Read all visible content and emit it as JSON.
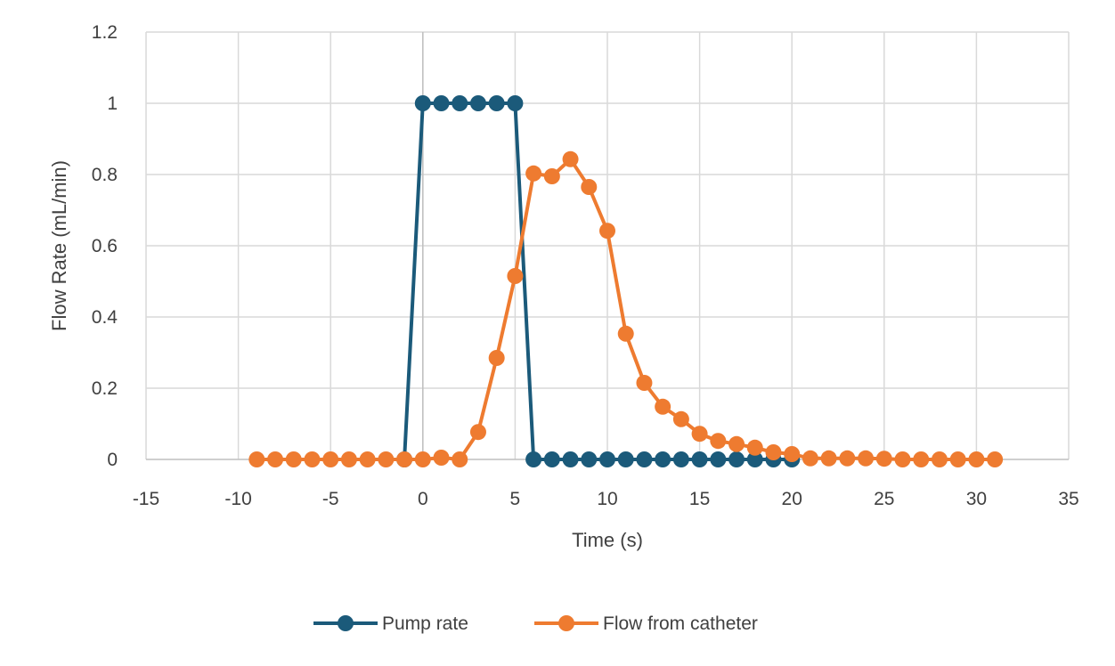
{
  "chart_data": {
    "type": "line",
    "title": "",
    "xlabel": "Time (s)",
    "ylabel": "Flow Rate (mL/min)",
    "xlim": [
      -15,
      35
    ],
    "ylim": [
      0,
      1.2
    ],
    "x_ticks": [
      -15,
      -10,
      -5,
      0,
      5,
      10,
      15,
      20,
      25,
      30,
      35
    ],
    "y_ticks": [
      0,
      0.2,
      0.4,
      0.6,
      0.8,
      1,
      1.2
    ],
    "x_tick_labels": [
      "-15",
      "-10",
      "-5",
      "0",
      "5",
      "10",
      "15",
      "20",
      "25",
      "30",
      "35"
    ],
    "y_tick_labels": [
      "0",
      "0.2",
      "0.4",
      "0.6",
      "0.8",
      "1",
      "1.2"
    ],
    "grid": true,
    "legend_position": "bottom",
    "series": [
      {
        "name": "Pump rate",
        "color": "#1b5a7a",
        "x": [
          -1,
          0,
          1,
          2,
          3,
          4,
          5,
          6,
          7,
          8,
          9,
          10,
          11,
          12,
          13,
          14,
          15,
          16,
          17,
          18,
          19,
          20
        ],
        "y": [
          0,
          1,
          1,
          1,
          1,
          1,
          1,
          0,
          0,
          0,
          0,
          0,
          0,
          0,
          0,
          0,
          0,
          0,
          0,
          0,
          0,
          0
        ]
      },
      {
        "name": "Flow from catheter",
        "color": "#ee7b30",
        "x": [
          -9,
          -8,
          -7,
          -6,
          -5,
          -4,
          -3,
          -2,
          -1,
          0,
          1,
          2,
          3,
          4,
          5,
          6,
          7,
          8,
          9,
          10,
          11,
          12,
          13,
          14,
          15,
          16,
          17,
          18,
          19,
          20,
          21,
          22,
          23,
          24,
          25,
          26,
          27,
          28,
          29,
          30,
          31
        ],
        "y": [
          0,
          0,
          0,
          0,
          0,
          0,
          0,
          0,
          0,
          0,
          0.005,
          0,
          0.077,
          0.285,
          0.515,
          0.803,
          0.795,
          0.843,
          0.765,
          0.642,
          0.353,
          0.215,
          0.148,
          0.113,
          0.072,
          0.052,
          0.043,
          0.033,
          0.02,
          0.015,
          0.003,
          0.003,
          0.003,
          0.003,
          0.002,
          0,
          0,
          0,
          0,
          0,
          0
        ]
      }
    ]
  }
}
